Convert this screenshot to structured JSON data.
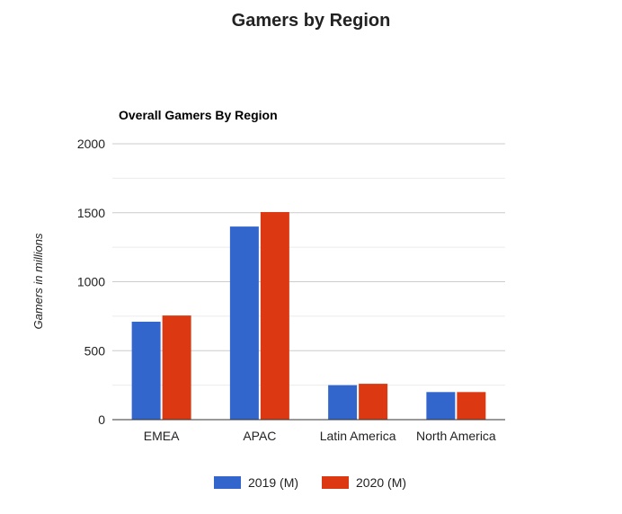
{
  "page": {
    "title": "Gamers by Region"
  },
  "chart_data": {
    "type": "bar",
    "title": "Overall Gamers By Region",
    "xlabel": "",
    "ylabel": "Gamers in millions",
    "categories": [
      "EMEA",
      "APAC",
      "Latin America",
      "North America"
    ],
    "series": [
      {
        "name": "2019 (M)",
        "color": "#3366cc",
        "values": [
          710,
          1400,
          250,
          200
        ]
      },
      {
        "name": "2020 (M)",
        "color": "#dc3912",
        "values": [
          755,
          1505,
          260,
          200
        ]
      }
    ],
    "ylim": [
      0,
      2000
    ],
    "yticks": [
      0,
      500,
      1000,
      1500,
      2000
    ],
    "minor_gridlines": true,
    "legend": "bottom"
  }
}
